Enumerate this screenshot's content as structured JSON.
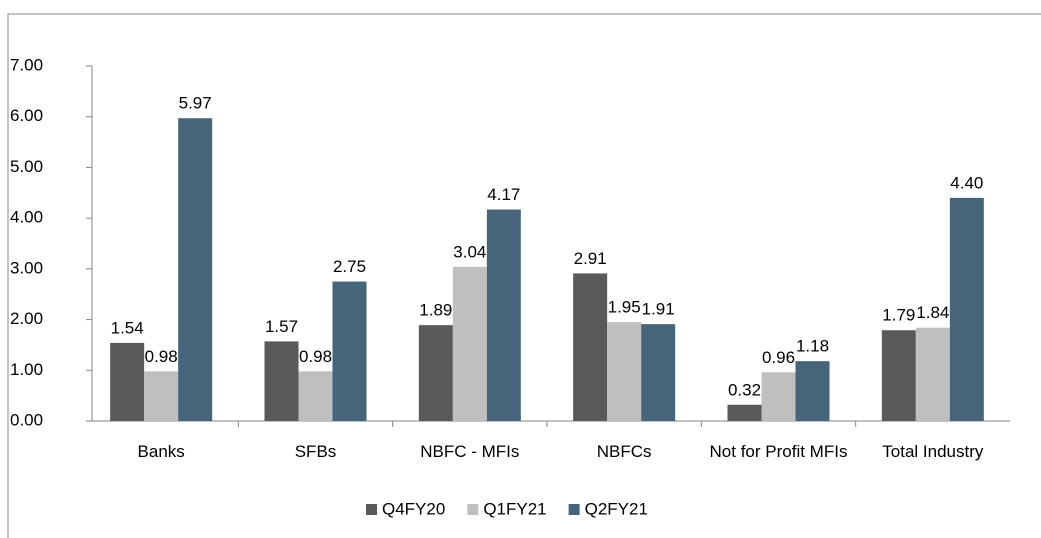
{
  "chart_data": {
    "type": "bar",
    "categories": [
      "Banks",
      "SFBs",
      "NBFC - MFIs",
      "NBFCs",
      "Not for Profit MFIs",
      "Total Industry"
    ],
    "series": [
      {
        "name": "Q4FY20",
        "color": "#595959",
        "values": [
          1.54,
          1.57,
          1.89,
          2.91,
          0.32,
          1.79
        ],
        "value_labels": [
          "1.54",
          "1.57",
          "1.89",
          "2.91",
          "0.32",
          "1.79"
        ]
      },
      {
        "name": "Q1FY21",
        "color": "#bfbfbf",
        "values": [
          0.98,
          0.98,
          3.04,
          1.95,
          0.96,
          1.84
        ],
        "value_labels": [
          "0.98",
          "0.98",
          "3.04",
          "1.95",
          "0.96",
          "1.84"
        ]
      },
      {
        "name": "Q2FY21",
        "color": "#46657b",
        "values": [
          5.97,
          2.75,
          4.17,
          1.91,
          1.18,
          4.4
        ],
        "value_labels": [
          "5.97",
          "2.75",
          "4.17",
          "1.91",
          "1.18",
          "4.40"
        ]
      }
    ],
    "ylim": [
      0,
      7
    ],
    "yticks": [
      {
        "value": 0,
        "label": "0.00"
      },
      {
        "value": 1,
        "label": "1.00"
      },
      {
        "value": 2,
        "label": "2.00"
      },
      {
        "value": 3,
        "label": "3.00"
      },
      {
        "value": 4,
        "label": "4.00"
      },
      {
        "value": 5,
        "label": "5.00"
      },
      {
        "value": 6,
        "label": "6.00"
      },
      {
        "value": 7,
        "label": "7.00"
      }
    ],
    "grid": false,
    "legend": "bottom"
  }
}
